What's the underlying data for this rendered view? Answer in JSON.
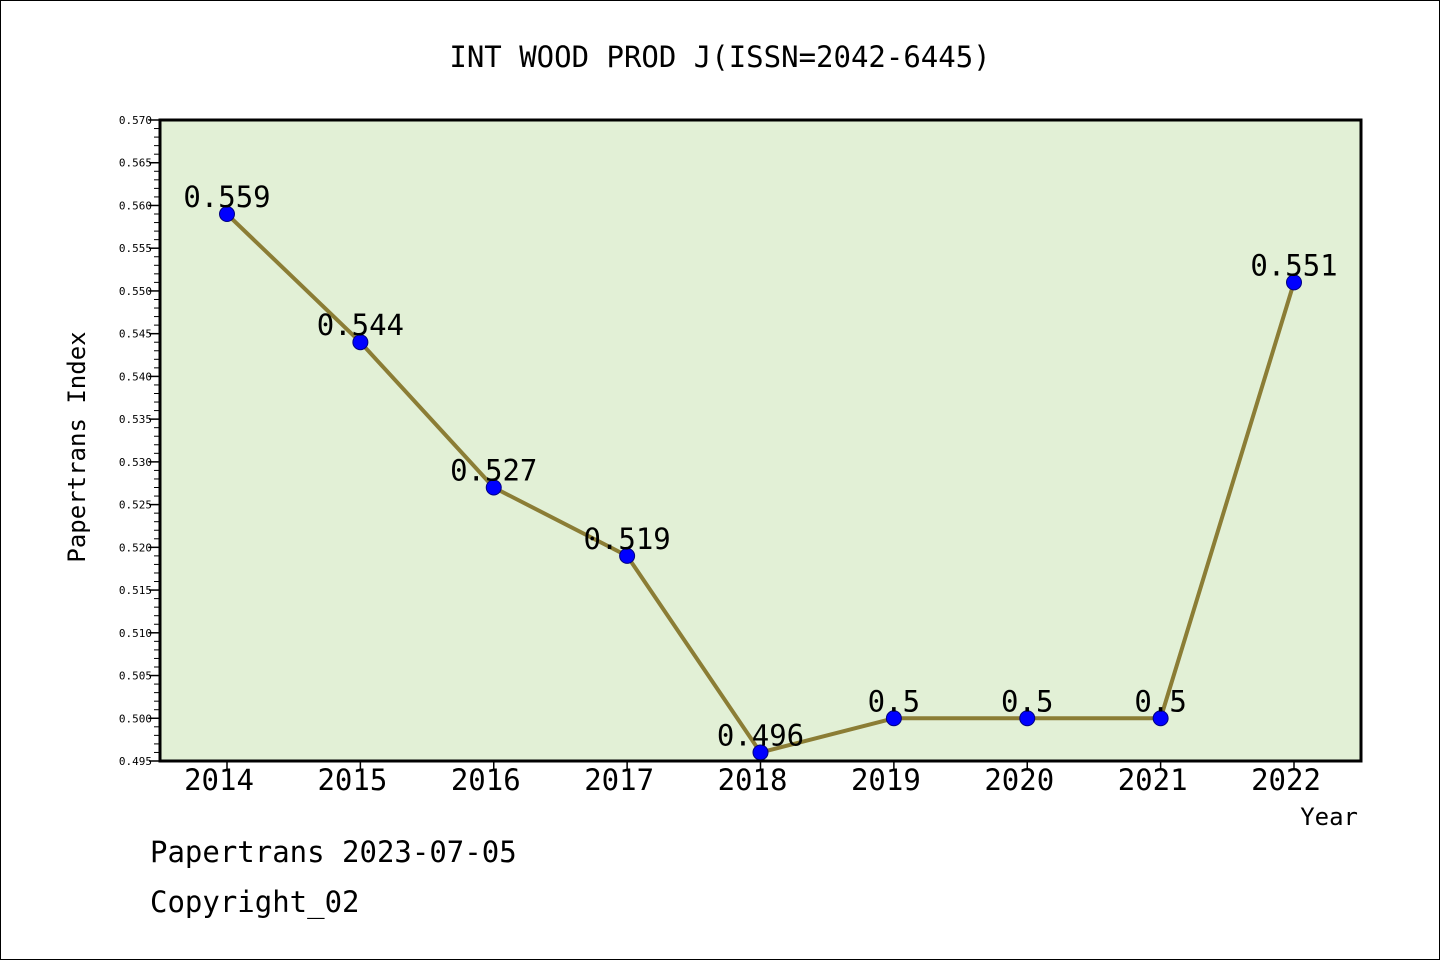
{
  "chart_data": {
    "type": "line",
    "title": "INT WOOD PROD J(ISSN=2042-6445)",
    "xlabel": "Year",
    "ylabel": "Papertrans Index",
    "categories": [
      "2014",
      "2015",
      "2016",
      "2017",
      "2018",
      "2019",
      "2020",
      "2021",
      "2022"
    ],
    "series": [
      {
        "values": [
          0.559,
          0.544,
          0.527,
          0.519,
          0.496,
          0.5,
          0.5,
          0.5,
          0.551
        ],
        "data_labels": [
          "0.559",
          "0.544",
          "0.527",
          "0.519",
          "0.496",
          "0.5",
          "0.5",
          "0.5",
          "0.551"
        ]
      }
    ],
    "ylim": [
      0.495,
      0.57
    ],
    "y_ticks": [
      "0.495",
      "0.500",
      "0.505",
      "0.510",
      "0.515",
      "0.520",
      "0.525",
      "0.530",
      "0.535",
      "0.540",
      "0.545",
      "0.550",
      "0.555",
      "0.560",
      "0.565",
      "0.570"
    ],
    "grid": false,
    "legend": "none",
    "colors": {
      "plot_background": "#e2f0d6",
      "line": "#8b7d35",
      "marker": "#0000ff",
      "axis": "#000000"
    }
  },
  "footer": {
    "source": "Papertrans 2023-07-05",
    "copyright": "Copyright_02"
  }
}
